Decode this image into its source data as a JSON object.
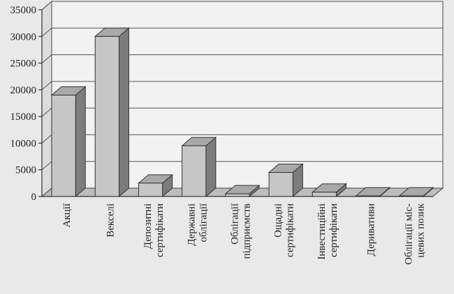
{
  "chart_data": {
    "type": "bar",
    "categories": [
      [
        "Акції"
      ],
      [
        "Векселі"
      ],
      [
        "Депозитні",
        "сертифікати"
      ],
      [
        "Державні",
        "облігації"
      ],
      [
        "Облігації",
        "підприємств"
      ],
      [
        "Ощадні",
        "сертифікати"
      ],
      [
        "Інвестиційні",
        "сертифікати"
      ],
      [
        "Деривативи"
      ],
      [
        "Облігації міс-",
        "цевих позик"
      ]
    ],
    "values": [
      19000,
      30000,
      2500,
      9500,
      500,
      4500,
      800,
      100,
      100
    ],
    "yticks": [
      0,
      5000,
      10000,
      15000,
      20000,
      25000,
      30000,
      35000
    ],
    "ylim": [
      0,
      35000
    ],
    "grid": true,
    "legend": "none",
    "colors": {
      "bar_front": "#c6c6c4",
      "bar_top": "#a9a9a7",
      "bar_side": "#7c7c7a",
      "wall": "#f2f2f0",
      "floor": "#bdbdbb"
    }
  }
}
